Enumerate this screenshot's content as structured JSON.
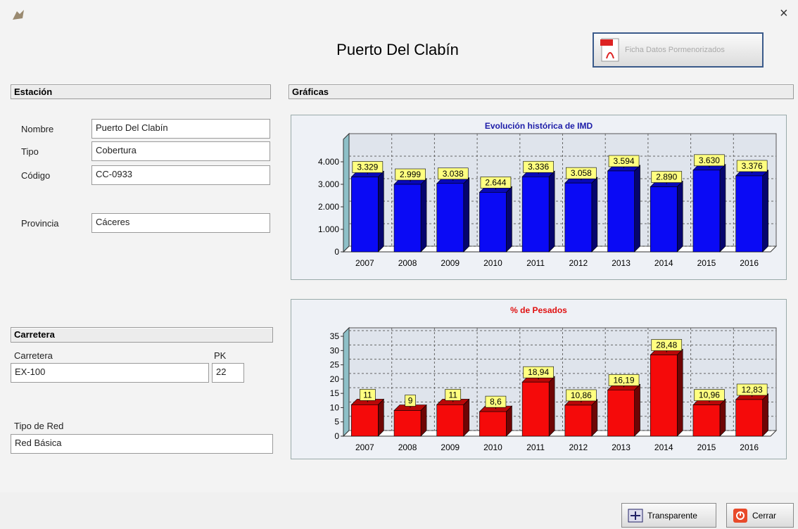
{
  "header": {
    "title": "Puerto Del Clabín",
    "pdf_button": "Ficha Datos Pormenorizados"
  },
  "estacion": {
    "heading": "Estación",
    "fields": [
      {
        "label": "Nombre",
        "value": "Puerto Del Clabín"
      },
      {
        "label": "Tipo",
        "value": "Cobertura"
      },
      {
        "label": "Código",
        "value": "CC-0933"
      },
      {
        "label": "Provincia",
        "value": "Cáceres"
      }
    ]
  },
  "graficas": {
    "heading": "Gráficas"
  },
  "carretera": {
    "heading": "Carretera",
    "carretera_label": "Carretera",
    "carretera_value": "EX-100",
    "pk_label": "PK",
    "pk_value": "22",
    "red_label": "Tipo de Red",
    "red_value": "Red Básica"
  },
  "footer": {
    "transparente": "Transparente",
    "cerrar": "Cerrar"
  },
  "chart_data": [
    {
      "type": "bar",
      "title": "Evolución histórica de IMD",
      "title_color": "#1c1ca8",
      "color": "#0a0af5",
      "categories": [
        "2007",
        "2008",
        "2009",
        "2010",
        "2011",
        "2012",
        "2013",
        "2014",
        "2015",
        "2016"
      ],
      "values": [
        3329,
        2999,
        3038,
        2644,
        3336,
        3058,
        3594,
        2890,
        3630,
        3376
      ],
      "value_labels": [
        "3.329",
        "2.999",
        "3.038",
        "2.644",
        "3.336",
        "3.058",
        "3.594",
        "2.890",
        "3.630",
        "3.376"
      ],
      "ylim": [
        0,
        5000
      ],
      "yticks": [
        0,
        {
          "value": 1000,
          "label": "1.000"
        },
        {
          "value": 2000,
          "label": "2.000"
        },
        {
          "value": 3000,
          "label": "3.000"
        },
        {
          "value": 4000,
          "label": "4.000"
        }
      ],
      "grid": true
    },
    {
      "type": "bar",
      "title": "% de Pesados",
      "title_color": "#e01010",
      "color": "#f50a0a",
      "categories": [
        "2007",
        "2008",
        "2009",
        "2010",
        "2011",
        "2012",
        "2013",
        "2014",
        "2015",
        "2016"
      ],
      "values": [
        11,
        9,
        11,
        8.6,
        18.94,
        10.86,
        16.19,
        28.48,
        10.96,
        12.83
      ],
      "value_labels": [
        "11",
        "9",
        "11",
        "8,6",
        "18,94",
        "10,86",
        "16,19",
        "28,48",
        "10,96",
        "12,83"
      ],
      "ylim": [
        0,
        36
      ],
      "yticks": [
        0,
        5,
        10,
        15,
        20,
        25,
        30,
        35
      ],
      "grid": true
    }
  ]
}
